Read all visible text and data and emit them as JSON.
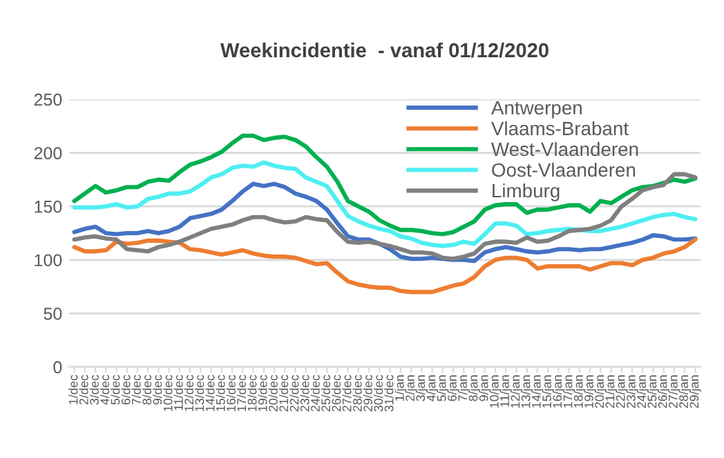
{
  "chart_data": {
    "type": "line",
    "title": "Weekincidentie  - vanaf 01/12/2020",
    "categories": [
      "1/dec",
      "2/dec",
      "3/dec",
      "4/dec",
      "5/dec",
      "6/dec",
      "7/dec",
      "8/dec",
      "9/dec",
      "10/dec",
      "11/dec",
      "12/dec",
      "13/dec",
      "14/dec",
      "15/dec",
      "16/dec",
      "17/dec",
      "18/dec",
      "19/dec",
      "20/dec",
      "21/dec",
      "22/dec",
      "23/dec",
      "24/dec",
      "25/dec",
      "26/dec",
      "27/dec",
      "28/dec",
      "29/dec",
      "30/dec",
      "31/dec",
      "1/jan",
      "2/jan",
      "3/jan",
      "4/jan",
      "5/jan",
      "6/jan",
      "7/jan",
      "8/jan",
      "9/jan",
      "10/jan",
      "11/jan",
      "12/jan",
      "13/jan",
      "14/jan",
      "15/jan",
      "16/jan",
      "17/jan",
      "18/jan",
      "19/jan",
      "20/jan",
      "21/jan",
      "22/jan",
      "23/jan",
      "24/jan",
      "25/jan",
      "26/jan",
      "27/jan",
      "28/jan",
      "29/jan"
    ],
    "series": [
      {
        "name": "Antwerpen",
        "color": "#4472c4",
        "values": [
          126,
          129,
          131,
          125,
          124,
          125,
          125,
          127,
          125,
          127,
          131,
          139,
          141,
          143,
          147,
          155,
          164,
          171,
          169,
          171,
          168,
          162,
          159,
          155,
          147,
          134,
          122,
          119,
          119,
          115,
          110,
          103,
          101,
          101,
          102,
          101,
          100,
          100,
          99,
          107,
          110,
          112,
          110,
          108,
          107,
          108,
          110,
          110,
          109,
          110,
          110,
          112,
          114,
          116,
          119,
          123,
          122,
          119,
          119,
          120
        ]
      },
      {
        "name": "Vlaams-Brabant",
        "color": "#ed7d31",
        "values": [
          112,
          108,
          108,
          109,
          117,
          115,
          116,
          118,
          118,
          117,
          116,
          110,
          109,
          107,
          105,
          107,
          109,
          106,
          104,
          103,
          103,
          102,
          99,
          96,
          97,
          88,
          80,
          77,
          75,
          74,
          74,
          71,
          70,
          70,
          70,
          73,
          76,
          78,
          84,
          94,
          100,
          102,
          102,
          100,
          92,
          94,
          94,
          94,
          94,
          91,
          94,
          97,
          97,
          95,
          100,
          102,
          106,
          108,
          112,
          119
        ]
      },
      {
        "name": "West-Vlaanderen",
        "color": "#00b050",
        "values": [
          155,
          162,
          169,
          163,
          165,
          168,
          168,
          173,
          175,
          174,
          182,
          189,
          192,
          196,
          201,
          209,
          216,
          216,
          212,
          214,
          215,
          212,
          206,
          196,
          187,
          173,
          155,
          150,
          145,
          137,
          132,
          128,
          128,
          127,
          125,
          124,
          126,
          131,
          136,
          147,
          151,
          152,
          152,
          144,
          147,
          147,
          149,
          151,
          151,
          145,
          155,
          153,
          159,
          165,
          168,
          169,
          172,
          175,
          173,
          176
        ]
      },
      {
        "name": "Oost-Vlaanderen",
        "color": "#4deef2",
        "values": [
          149,
          149,
          149,
          150,
          152,
          149,
          150,
          157,
          159,
          162,
          162,
          164,
          170,
          177,
          180,
          186,
          188,
          187,
          191,
          188,
          186,
          185,
          177,
          173,
          169,
          155,
          141,
          136,
          132,
          129,
          127,
          122,
          120,
          116,
          114,
          113,
          114,
          117,
          115,
          124,
          134,
          134,
          132,
          124,
          125,
          127,
          128,
          129,
          128,
          127,
          127,
          129,
          131,
          134,
          137,
          140,
          142,
          143,
          140,
          138
        ]
      },
      {
        "name": "Limburg",
        "color": "#7f7f7f",
        "values": [
          119,
          121,
          122,
          120,
          119,
          110,
          109,
          108,
          112,
          114,
          117,
          121,
          125,
          129,
          131,
          133,
          137,
          140,
          140,
          137,
          135,
          136,
          140,
          138,
          137,
          126,
          117,
          116,
          117,
          115,
          113,
          110,
          107,
          107,
          106,
          102,
          101,
          103,
          106,
          115,
          117,
          117,
          116,
          121,
          117,
          118,
          122,
          127,
          128,
          129,
          132,
          137,
          150,
          157,
          165,
          168,
          170,
          180,
          180,
          177
        ]
      }
    ],
    "ylim": [
      0,
      250
    ],
    "yticks": [
      0,
      50,
      100,
      150,
      200,
      250
    ],
    "grid": "y",
    "legend": "top right",
    "marker": "none",
    "line_style": "solid"
  }
}
